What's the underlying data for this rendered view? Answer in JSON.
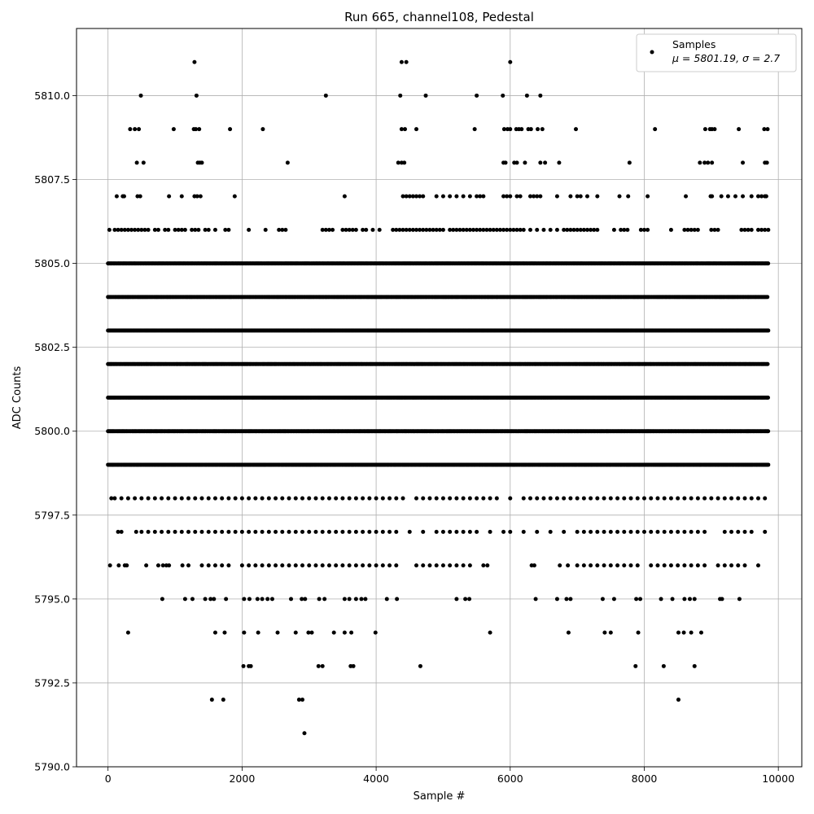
{
  "chart_data": {
    "type": "scatter",
    "title": "Run 665, channel108, Pedestal",
    "xlabel": "Sample #",
    "ylabel": "ADC Counts",
    "xlim": [
      -470,
      10350
    ],
    "ylim": [
      5790.0,
      5812.0
    ],
    "xticks": [
      0,
      2000,
      4000,
      6000,
      8000,
      10000
    ],
    "xtick_labels": [
      "0",
      "2000",
      "4000",
      "6000",
      "8000",
      "10000"
    ],
    "yticks": [
      5790.0,
      5792.5,
      5795.0,
      5797.5,
      5800.0,
      5802.5,
      5805.0,
      5807.5,
      5810.0
    ],
    "ytick_labels": [
      "5790.0",
      "5792.5",
      "5795.0",
      "5797.5",
      "5800.0",
      "5802.5",
      "5805.0",
      "5807.5",
      "5810.0"
    ],
    "grid": true,
    "legend_position": "top-right",
    "marker_color": "#000000",
    "series": [
      {
        "name": "Samples",
        "stats_label": "μ = 5801.19, σ = 2.7",
        "points_note": "dense rows at integer ADC values, sample index 0-9850",
        "levels": [
          {
            "y": 5791,
            "x": [
              2930
            ]
          },
          {
            "y": 5792,
            "x": [
              1550,
              1720,
              2850,
              2900,
              8510
            ]
          },
          {
            "y": 5793,
            "x": [
              2020,
              2100,
              2130,
              3140,
              3200,
              3620,
              3660,
              4660,
              7870,
              8290,
              8750
            ]
          },
          {
            "y": 5794,
            "x": [
              300,
              1600,
              1740,
              2030,
              2240,
              2530,
              2800,
              2990,
              3040,
              3370,
              3530,
              3630,
              3990,
              5700,
              6870,
              7410,
              7500,
              7910,
              8510,
              8590,
              8700,
              8850
            ]
          },
          {
            "y": 5795,
            "x": [
              810,
              1150,
              1260,
              1450,
              1530,
              1580,
              1760,
              2030,
              2110,
              2230,
              2300,
              2380,
              2450,
              2730,
              2890,
              2940,
              3150,
              3230,
              3530,
              3600,
              3700,
              3780,
              3840,
              4160,
              4310,
              5200,
              5330,
              5390,
              6380,
              6700,
              6840,
              6900,
              7380,
              7550,
              7880,
              7940,
              8250,
              8420,
              8600,
              8680,
              8750,
              9130,
              9160,
              9420
            ]
          },
          {
            "y": 5796,
            "x": [
              30,
              160,
              250,
              280,
              570,
              750,
              820,
              870,
              910,
              1110,
              1200,
              1400,
              1500,
              1600,
              1700,
              1800,
              2000,
              2100,
              2200,
              2300,
              2400,
              2500,
              2600,
              2700,
              2800,
              2900,
              3000,
              3100,
              3200,
              3300,
              3400,
              3500,
              3600,
              3700,
              3800,
              3900,
              4000,
              4100,
              4200,
              4300,
              4600,
              4700,
              4800,
              4900,
              5000,
              5100,
              5200,
              5300,
              5400,
              5600,
              5660,
              6320,
              6360,
              6740,
              6860,
              7000,
              7100,
              7200,
              7300,
              7400,
              7500,
              7600,
              7700,
              7800,
              7900,
              8100,
              8200,
              8300,
              8400,
              8500,
              8600,
              8700,
              8800,
              8900,
              9100,
              9200,
              9300,
              9400,
              9500,
              9700
            ]
          },
          {
            "y": 5797,
            "x": [
              150,
              200,
              420,
              500,
              600,
              700,
              800,
              900,
              1000,
              1100,
              1200,
              1300,
              1400,
              1500,
              1600,
              1700,
              1800,
              1900,
              2000,
              2100,
              2200,
              2300,
              2400,
              2500,
              2600,
              2700,
              2800,
              2900,
              3000,
              3100,
              3200,
              3300,
              3400,
              3500,
              3600,
              3700,
              3800,
              3900,
              4000,
              4100,
              4200,
              4300,
              4500,
              4700,
              4900,
              5000,
              5100,
              5200,
              5300,
              5400,
              5500,
              5700,
              5900,
              6000,
              6200,
              6400,
              6600,
              6800,
              7000,
              7100,
              7200,
              7300,
              7400,
              7500,
              7600,
              7700,
              7800,
              7900,
              8000,
              8100,
              8200,
              8300,
              8400,
              8500,
              8600,
              8700,
              8800,
              8900,
              9200,
              9300,
              9400,
              9500,
              9600,
              9800
            ]
          },
          {
            "y": 5798,
            "x": [
              50,
              100,
              200,
              300,
              400,
              500,
              600,
              700,
              800,
              900,
              1000,
              1100,
              1200,
              1300,
              1400,
              1500,
              1600,
              1700,
              1800,
              1900,
              2000,
              2100,
              2200,
              2300,
              2400,
              2500,
              2600,
              2700,
              2800,
              2900,
              3000,
              3100,
              3200,
              3300,
              3400,
              3500,
              3600,
              3700,
              3800,
              3900,
              4000,
              4100,
              4200,
              4300,
              4400,
              4600,
              4700,
              4800,
              4900,
              5000,
              5100,
              5200,
              5300,
              5400,
              5500,
              5600,
              5700,
              5800,
              6000,
              6200,
              6300,
              6400,
              6500,
              6600,
              6700,
              6800,
              6900,
              7000,
              7100,
              7200,
              7300,
              7400,
              7500,
              7600,
              7700,
              7800,
              7900,
              8000,
              8100,
              8200,
              8300,
              8400,
              8500,
              8600,
              8700,
              8800,
              8900,
              9000,
              9100,
              9200,
              9300,
              9400,
              9500,
              9600,
              9700,
              9800
            ]
          },
          {
            "y": 5799,
            "x": "dense"
          },
          {
            "y": 5800,
            "x": "dense"
          },
          {
            "y": 5801,
            "x": "dense"
          },
          {
            "y": 5802,
            "x": "dense"
          },
          {
            "y": 5803,
            "x": "dense"
          },
          {
            "y": 5804,
            "x": "dense"
          },
          {
            "y": 5805,
            "x": "dense"
          },
          {
            "y": 5806,
            "x": [
              20,
              100,
              150,
              200,
              250,
              300,
              350,
              400,
              450,
              500,
              550,
              600,
              700,
              750,
              850,
              900,
              1000,
              1050,
              1100,
              1150,
              1250,
              1300,
              1350,
              1450,
              1500,
              1600,
              1750,
              1800,
              2100,
              2350,
              2550,
              2600,
              2650,
              3200,
              3250,
              3300,
              3350,
              3500,
              3550,
              3600,
              3650,
              3700,
              3800,
              3850,
              3950,
              4050,
              4250,
              4300,
              4350,
              4400,
              4450,
              4500,
              4550,
              4600,
              4650,
              4700,
              4750,
              4800,
              4850,
              4900,
              4950,
              5000,
              5100,
              5150,
              5200,
              5250,
              5300,
              5350,
              5400,
              5450,
              5500,
              5550,
              5600,
              5650,
              5700,
              5750,
              5800,
              5850,
              5900,
              5950,
              6000,
              6050,
              6100,
              6150,
              6200,
              6300,
              6400,
              6500,
              6600,
              6700,
              6800,
              6850,
              6900,
              6950,
              7000,
              7050,
              7100,
              7150,
              7200,
              7250,
              7300,
              7550,
              7650,
              7700,
              7750,
              7950,
              8000,
              8050,
              8400,
              8600,
              8650,
              8700,
              8750,
              8800,
              9000,
              9050,
              9100,
              9450,
              9500,
              9550,
              9600,
              9700,
              9750,
              9800,
              9850
            ]
          },
          {
            "y": 5807,
            "x": [
              130,
              220,
              240,
              440,
              480,
              910,
              1100,
              1290,
              1330,
              1380,
              1890,
              3530,
              4400,
              4450,
              4500,
              4550,
              4600,
              4650,
              4700,
              4900,
              5000,
              5100,
              5200,
              5300,
              5400,
              5500,
              5550,
              5600,
              5900,
              5950,
              6000,
              6100,
              6150,
              6300,
              6350,
              6400,
              6450,
              6700,
              6900,
              7000,
              7050,
              7150,
              7300,
              7630,
              7760,
              8050,
              8620,
              8990,
              9010,
              9150,
              9250,
              9360,
              9470,
              9600,
              9700,
              9750,
              9800,
              9820
            ]
          },
          {
            "y": 5808,
            "x": [
              430,
              530,
              1340,
              1370,
              1400,
              2680,
              4330,
              4380,
              4420,
              5900,
              5930,
              6060,
              6100,
              6220,
              6450,
              6520,
              6730,
              7780,
              8830,
              8900,
              8950,
              9010,
              9470,
              9800,
              9830
            ]
          },
          {
            "y": 5809,
            "x": [
              330,
              400,
              460,
              980,
              1280,
              1310,
              1360,
              1820,
              2310,
              4380,
              4430,
              4600,
              5470,
              5910,
              5960,
              6000,
              6090,
              6130,
              6170,
              6270,
              6310,
              6410,
              6480,
              6980,
              8160,
              8910,
              8980,
              9010,
              9050,
              9410,
              9790,
              9840
            ]
          },
          {
            "y": 5810,
            "x": [
              490,
              1320,
              3250,
              4360,
              4740,
              5500,
              5890,
              6250,
              6450
            ]
          },
          {
            "y": 5811,
            "x": [
              1290,
              4380,
              4450,
              6000
            ]
          }
        ]
      }
    ]
  }
}
